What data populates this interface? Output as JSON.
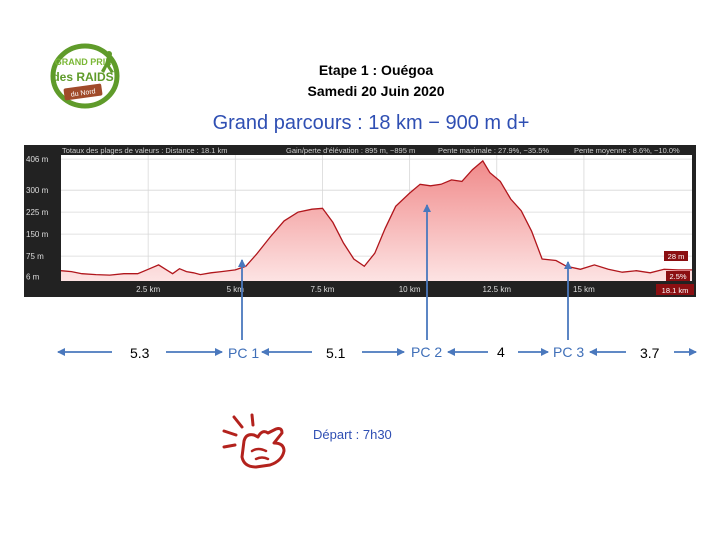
{
  "header": {
    "title": "Etape 1 : Ouégoa",
    "date": "Samedi 20 Juin 2020",
    "subtitle": "Grand parcours : 18 km − 900 m d+"
  },
  "logo": {
    "text_top": "GRAND PRIX",
    "text_mid": "des RAIDS",
    "text_bottom": "du Nord",
    "colors": {
      "green": "#7ab735",
      "ring": "#5f9b2a",
      "banner": "#a04b2a"
    }
  },
  "chart_data": {
    "type": "area",
    "title": "",
    "stats": {
      "totals": "Totaux des plages de valeurs : Distance : 18.1 km",
      "gain": "Gain/perte d'élévation : 895 m, −895 m",
      "max_slope": "Pente maximale : 27.9%, −35.5%",
      "avg_slope": "Pente moyenne : 8.6%, −10.0%"
    },
    "xlabel": "",
    "ylabel": "",
    "xlim": [
      0,
      18.1
    ],
    "ylim": [
      -10,
      420
    ],
    "x_ticks": [
      {
        "v": 2.5,
        "label": "2.5 km"
      },
      {
        "v": 5,
        "label": "5 km"
      },
      {
        "v": 7.5,
        "label": "7.5 km"
      },
      {
        "v": 10,
        "label": "10 km"
      },
      {
        "v": 12.5,
        "label": "12.5 km"
      },
      {
        "v": 15,
        "label": "15 km"
      }
    ],
    "y_ticks": [
      {
        "v": 6,
        "label": "6 m"
      },
      {
        "v": 75,
        "label": "75 m"
      },
      {
        "v": 150,
        "label": "150 m"
      },
      {
        "v": 225,
        "label": "225 m"
      },
      {
        "v": 300,
        "label": "300 m"
      },
      {
        "v": 406,
        "label": "406 m"
      }
    ],
    "end_labels": {
      "distance": "18.1 km",
      "elevation": "28 m",
      "slope": "2.5%"
    },
    "grid": true,
    "colors": {
      "background": "#ffffff",
      "frame": "#333333",
      "fill_top": "#f08a8a",
      "fill_bottom": "#fde3e3",
      "line": "#b0161c",
      "endbox": "#8b0f12"
    },
    "x": [
      0,
      0.3,
      0.6,
      1.0,
      1.4,
      1.8,
      2.2,
      2.5,
      2.8,
      3.0,
      3.2,
      3.4,
      3.6,
      3.8,
      4.0,
      4.3,
      4.6,
      5.0,
      5.3,
      5.6,
      6.0,
      6.4,
      6.8,
      7.2,
      7.5,
      7.8,
      8.1,
      8.4,
      8.7,
      9.0,
      9.3,
      9.6,
      10.0,
      10.3,
      10.6,
      10.9,
      11.2,
      11.5,
      11.8,
      12.1,
      12.3,
      12.6,
      12.9,
      13.2,
      13.5,
      13.8,
      14.2,
      14.5,
      14.9,
      15.3,
      15.7,
      16.1,
      16.5,
      16.9,
      17.3,
      17.7,
      18.1
    ],
    "values": [
      25,
      22,
      15,
      12,
      10,
      15,
      15,
      30,
      45,
      30,
      15,
      32,
      22,
      18,
      12,
      18,
      22,
      28,
      40,
      80,
      140,
      195,
      225,
      235,
      238,
      190,
      120,
      65,
      40,
      85,
      170,
      245,
      290,
      320,
      315,
      320,
      335,
      330,
      370,
      400,
      360,
      330,
      270,
      230,
      160,
      65,
      60,
      40,
      30,
      45,
      30,
      20,
      25,
      18,
      30,
      28,
      28
    ]
  },
  "annotations": {
    "segments": [
      "5.3",
      "5.1",
      "4",
      "3.7"
    ],
    "checkpoints": [
      {
        "label": "PC 1",
        "km": 5.3
      },
      {
        "label": "PC 2",
        "km": 10.4
      },
      {
        "label": "PC 3",
        "km": 14.4
      }
    ],
    "depart": "Départ : 7h30",
    "colors": {
      "arrow": "#4a78bd",
      "pc": "#3f6fb8",
      "hand": "#b3221d"
    }
  }
}
